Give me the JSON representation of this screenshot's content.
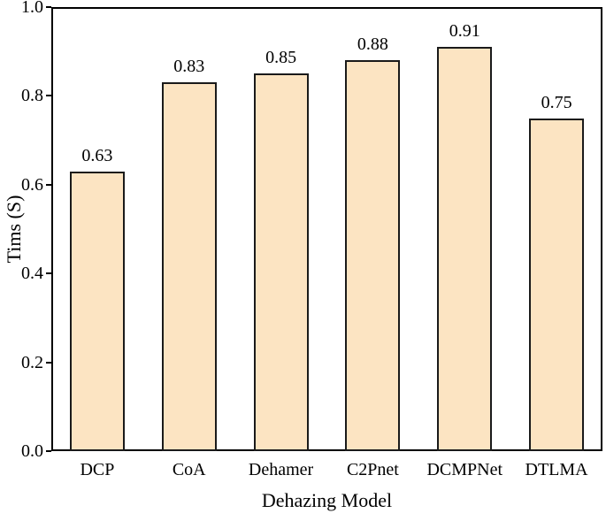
{
  "chart_data": {
    "type": "bar",
    "title": "",
    "xlabel": "Dehazing Model",
    "ylabel": "Tims (S)",
    "categories": [
      "DCP",
      "CoA",
      "Dehamer",
      "C2Pnet",
      "DCMPNet",
      "DTLMA"
    ],
    "values": [
      0.63,
      0.83,
      0.85,
      0.88,
      0.91,
      0.75
    ],
    "value_labels": [
      "0.63",
      "0.83",
      "0.85",
      "0.88",
      "0.91",
      "0.75"
    ],
    "ylim": [
      0.0,
      1.0
    ],
    "yticks": [
      "0.0",
      "0.2",
      "0.4",
      "0.6",
      "0.8",
      "1.0"
    ],
    "grid": false,
    "legend": null,
    "colors": {
      "bar_fill": "#FCE4C2",
      "bar_border": "#1a1a1a",
      "axis": "#000000",
      "text": "#000000",
      "background": "#ffffff"
    }
  }
}
